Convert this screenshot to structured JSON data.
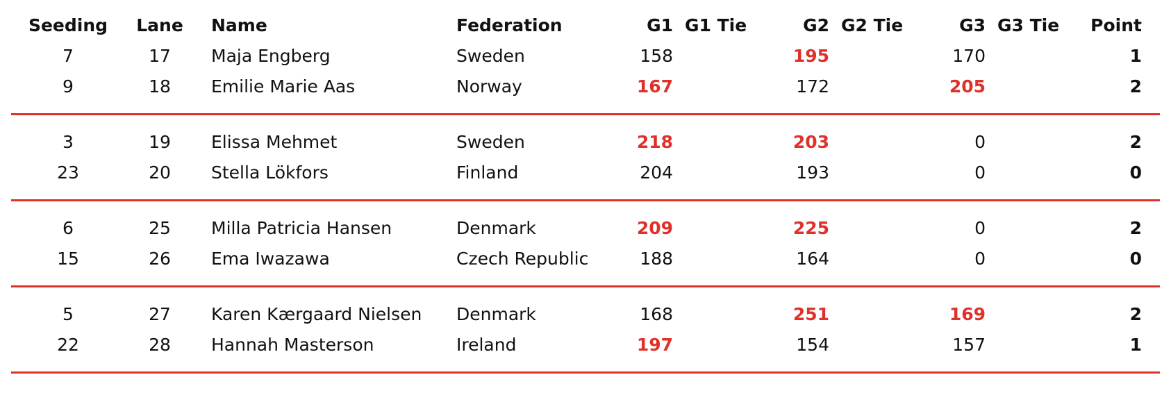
{
  "table": {
    "columns": [
      "Seeding",
      "Lane",
      "Name",
      "Federation",
      "G1",
      "G1 Tie",
      "G2",
      "G2 Tie",
      "G3",
      "G3 Tie",
      "Point"
    ],
    "groups": [
      [
        {
          "seeding": "7",
          "lane": "17",
          "name": "Maja Engberg",
          "federation": "Sweden",
          "g1": "158",
          "g2": "195",
          "g3": "170",
          "point": "1",
          "win": [
            false,
            true,
            false
          ]
        },
        {
          "seeding": "9",
          "lane": "18",
          "name": "Emilie Marie Aas",
          "federation": "Norway",
          "g1": "167",
          "g2": "172",
          "g3": "205",
          "point": "2",
          "win": [
            true,
            false,
            true
          ]
        }
      ],
      [
        {
          "seeding": "3",
          "lane": "19",
          "name": "Elissa Mehmet",
          "federation": "Sweden",
          "g1": "218",
          "g2": "203",
          "g3": "0",
          "point": "2",
          "win": [
            true,
            true,
            false
          ]
        },
        {
          "seeding": "23",
          "lane": "20",
          "name": "Stella Lökfors",
          "federation": "Finland",
          "g1": "204",
          "g2": "193",
          "g3": "0",
          "point": "0",
          "win": [
            false,
            false,
            false
          ]
        }
      ],
      [
        {
          "seeding": "6",
          "lane": "25",
          "name": "Milla Patricia Hansen",
          "federation": "Denmark",
          "g1": "209",
          "g2": "225",
          "g3": "0",
          "point": "2",
          "win": [
            true,
            true,
            false
          ]
        },
        {
          "seeding": "15",
          "lane": "26",
          "name": "Ema Iwazawa",
          "federation": "Czech Republic",
          "g1": "188",
          "g2": "164",
          "g3": "0",
          "point": "0",
          "win": [
            false,
            false,
            false
          ]
        }
      ],
      [
        {
          "seeding": "5",
          "lane": "27",
          "name": "Karen Kærgaard Nielsen",
          "federation": "Denmark",
          "g1": "168",
          "g2": "251",
          "g3": "169",
          "point": "2",
          "win": [
            false,
            true,
            true
          ]
        },
        {
          "seeding": "22",
          "lane": "28",
          "name": "Hannah Masterson",
          "federation": "Ireland",
          "g1": "197",
          "g2": "154",
          "g3": "157",
          "point": "1",
          "win": [
            true,
            false,
            false
          ]
        }
      ]
    ],
    "accent_color": "#e0302a"
  }
}
